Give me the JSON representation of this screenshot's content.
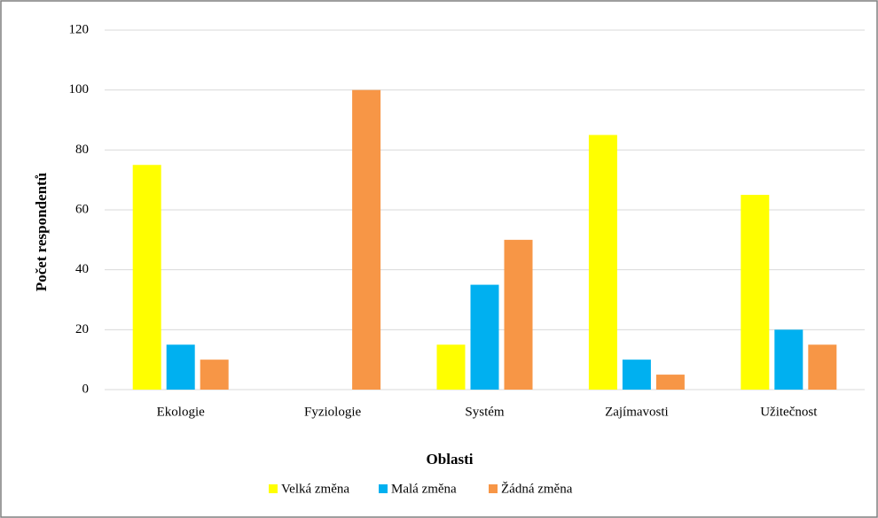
{
  "chart_data": {
    "type": "bar",
    "categories": [
      "Ekologie",
      "Fyziologie",
      "Systém",
      "Zajímavosti",
      "Užitečnost"
    ],
    "series": [
      {
        "name": "Velká změna",
        "color": "#ffff00",
        "values": [
          75,
          0,
          15,
          85,
          65
        ]
      },
      {
        "name": "Malá změna",
        "color": "#00b0f0",
        "values": [
          15,
          0,
          35,
          10,
          20
        ]
      },
      {
        "name": "Žádná změna",
        "color": "#f79646",
        "values": [
          10,
          100,
          50,
          5,
          15
        ]
      }
    ],
    "x_label": "Oblasti",
    "y_label": "Počet respondentů",
    "ylim": [
      0,
      120
    ],
    "yticks": [
      0,
      20,
      40,
      60,
      80,
      100,
      120
    ],
    "grid": true,
    "legend": "bottom"
  }
}
